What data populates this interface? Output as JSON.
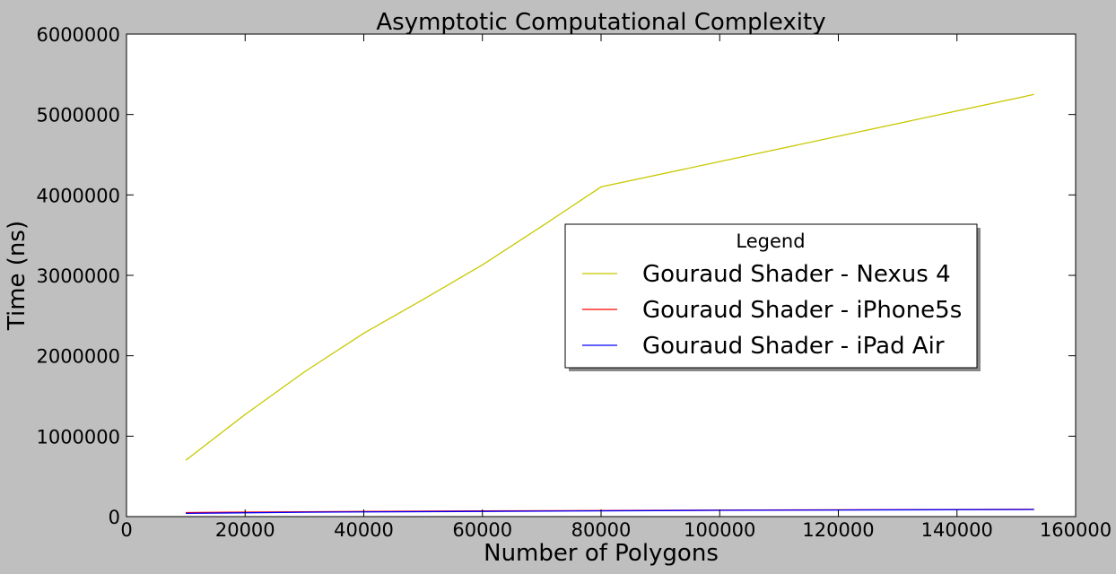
{
  "chart_data": {
    "type": "line",
    "title": "Asymptotic Computational Complexity",
    "xlabel": "Number of Polygons",
    "ylabel": "Time (ns)",
    "xlim": [
      0,
      160000
    ],
    "ylim": [
      0,
      6000000
    ],
    "xticks": [
      0,
      20000,
      40000,
      60000,
      80000,
      100000,
      120000,
      140000,
      160000
    ],
    "yticks": [
      0,
      1000000,
      2000000,
      3000000,
      4000000,
      5000000,
      6000000
    ],
    "grid": false,
    "legend": {
      "title": "Legend",
      "placement": "center-right"
    },
    "series": [
      {
        "name": "Gouraud Shader - Nexus 4",
        "color": "#c8c800",
        "x": [
          10000,
          20000,
          30000,
          40000,
          50000,
          60000,
          70000,
          80000,
          153000
        ],
        "y": [
          700000,
          1270000,
          1800000,
          2280000,
          2700000,
          3130000,
          3610000,
          4100000,
          5250000
        ]
      },
      {
        "name": "Gouraud Shader - iPhone5s",
        "color": "#ff0000",
        "x": [
          10000,
          30000,
          60000,
          100000,
          153000
        ],
        "y": [
          50000,
          60000,
          70000,
          80000,
          90000
        ]
      },
      {
        "name": "Gouraud Shader - iPad Air",
        "color": "#0000ff",
        "x": [
          10000,
          30000,
          60000,
          100000,
          153000
        ],
        "y": [
          40000,
          55000,
          65000,
          78000,
          88000
        ]
      }
    ]
  }
}
